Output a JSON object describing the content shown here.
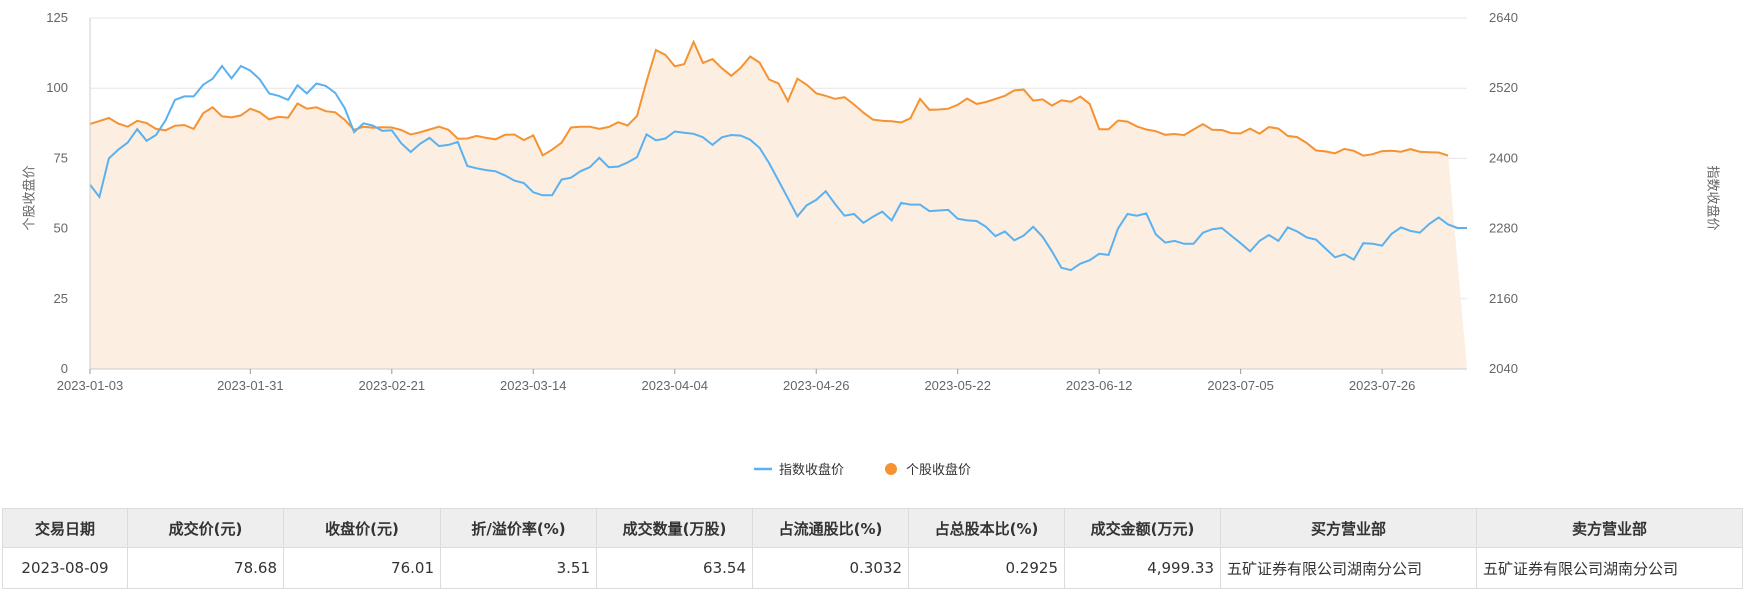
{
  "chart_data": {
    "type": "line",
    "title": "",
    "xlabel": "",
    "ylabel_left": "个股收盘价",
    "ylabel_right": "指数收盘价",
    "y_left": {
      "min": 0,
      "max": 125,
      "ticks": [
        0,
        25,
        50,
        75,
        100,
        125
      ]
    },
    "y_right": {
      "min": 2040,
      "max": 2640,
      "ticks": [
        2040,
        2160,
        2280,
        2400,
        2520,
        2640
      ]
    },
    "x_ticks": [
      {
        "label": "2023-01-03",
        "index": 0
      },
      {
        "label": "2023-01-31",
        "index": 17
      },
      {
        "label": "2023-02-21",
        "index": 32
      },
      {
        "label": "2023-03-14",
        "index": 47
      },
      {
        "label": "2023-04-04",
        "index": 62
      },
      {
        "label": "2023-04-26",
        "index": 77
      },
      {
        "label": "2023-05-22",
        "index": 92
      },
      {
        "label": "2023-06-12",
        "index": 107
      },
      {
        "label": "2023-07-05",
        "index": 122
      },
      {
        "label": "2023-07-26",
        "index": 137
      }
    ],
    "grid": true,
    "legend_position": "bottom-center",
    "series": [
      {
        "name": "指数收盘价",
        "axis": "right",
        "color": "#5ab1ef",
        "values": [
          2355,
          2334,
          2400,
          2415,
          2427,
          2450,
          2430,
          2440,
          2465,
          2500,
          2506,
          2506,
          2526,
          2536,
          2558,
          2537,
          2558,
          2550,
          2535,
          2511,
          2507,
          2500,
          2525,
          2511,
          2528,
          2524,
          2512,
          2486,
          2445,
          2460,
          2456,
          2447,
          2448,
          2426,
          2411,
          2425,
          2435,
          2421,
          2423,
          2428,
          2387,
          2383,
          2380,
          2378,
          2371,
          2362,
          2358,
          2342,
          2337,
          2337,
          2364,
          2367,
          2378,
          2385,
          2401,
          2385,
          2386,
          2393,
          2402,
          2441,
          2431,
          2434,
          2446,
          2444,
          2442,
          2436,
          2423,
          2436,
          2440,
          2439,
          2432,
          2418,
          2392,
          2362,
          2332,
          2301,
          2320,
          2329,
          2344,
          2322,
          2302,
          2305,
          2290,
          2300,
          2309,
          2294,
          2324,
          2321,
          2321,
          2310,
          2311,
          2312,
          2297,
          2294,
          2293,
          2283,
          2267,
          2275,
          2260,
          2268,
          2283,
          2266,
          2241,
          2213,
          2209,
          2220,
          2226,
          2237,
          2235,
          2280,
          2305,
          2302,
          2306,
          2270,
          2256,
          2259,
          2254,
          2254,
          2273,
          2279,
          2281,
          2268,
          2255,
          2241,
          2259,
          2269,
          2259,
          2282,
          2275,
          2265,
          2261,
          2246,
          2231,
          2236,
          2227,
          2255,
          2254,
          2251,
          2271,
          2282,
          2276,
          2273,
          2288,
          2299,
          2287,
          2281,
          2281
        ]
      },
      {
        "name": "个股收盘价",
        "axis": "left",
        "color": "#f59231",
        "values": [
          87.3,
          88.3,
          89.4,
          87.4,
          86.3,
          88.4,
          87.6,
          85.5,
          85,
          86.6,
          86.9,
          85.5,
          91.1,
          93.2,
          90,
          89.6,
          90.3,
          92.7,
          91.4,
          88.9,
          89.8,
          89.5,
          94.6,
          92.7,
          93.2,
          91.8,
          91.4,
          88.7,
          85.2,
          86.3,
          85.9,
          86.1,
          86,
          85.1,
          83.5,
          84.3,
          85.3,
          86.3,
          85.2,
          82,
          82.1,
          83,
          82.3,
          81.8,
          83.4,
          83.5,
          81.5,
          83.2,
          76.1,
          78.1,
          80.6,
          86,
          86.3,
          86.3,
          85.5,
          86.2,
          87.9,
          86.7,
          90.1,
          102.4,
          113.6,
          111.9,
          107.8,
          108.6,
          116.5,
          109,
          110.4,
          107.1,
          104.4,
          107.3,
          111.3,
          109.1,
          103.1,
          101.7,
          95.4,
          103.4,
          101.2,
          98.2,
          97.3,
          96.2,
          96.8,
          94.2,
          91.3,
          88.8,
          88.4,
          88.2,
          87.8,
          89.3,
          96.2,
          92.3,
          92.4,
          92.7,
          94.1,
          96.3,
          94.4,
          95.1,
          96.2,
          97.3,
          99.2,
          99.5,
          95.6,
          96,
          93.8,
          95.7,
          95.2,
          97,
          94.4,
          85.4,
          85.4,
          88.5,
          88.1,
          86.4,
          85.3,
          84.7,
          83.4,
          83.7,
          83.3,
          85.3,
          87.2,
          85.2,
          85.1,
          84,
          83.9,
          85.6,
          83.8,
          86.2,
          85.6,
          83,
          82.6,
          80.5,
          77.8,
          77.5,
          76.8,
          78.4,
          77.7,
          76,
          76.5,
          77.6,
          77.7,
          77.4,
          78.3,
          77.4,
          77.2,
          77.1,
          76.01
        ]
      }
    ]
  },
  "colors": {
    "index_line": "#5ab1ef",
    "stock_line": "#f59231",
    "stock_area": "#fdeee2",
    "grid": "#e6e6e6"
  },
  "table": {
    "headers": [
      "交易日期",
      "成交价(元)",
      "收盘价(元)",
      "折/溢价率(%)",
      "成交数量(万股)",
      "占流通股比(%)",
      "占总股本比(%)",
      "成交金额(万元)",
      "买方营业部",
      "卖方营业部"
    ],
    "rows": [
      [
        "2023-08-09",
        "78.68",
        "76.01",
        "3.51",
        "63.54",
        "0.3032",
        "0.2925",
        "4,999.33",
        "五矿证券有限公司湖南分公司",
        "五矿证券有限公司湖南分公司"
      ]
    ]
  }
}
